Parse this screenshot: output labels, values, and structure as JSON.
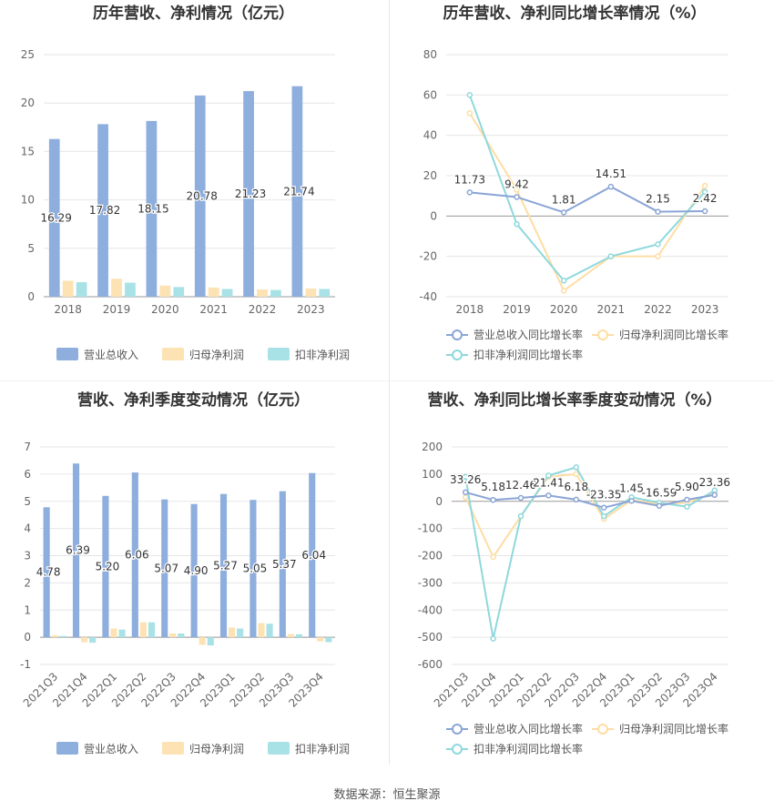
{
  "source": "数据来源：恒生聚源",
  "colors": {
    "revenue": "#8eaedd",
    "net_profit": "#fde2b3",
    "deducted_profit": "#a9e2e6",
    "revenue_growth": "#8aa5d6",
    "net_profit_growth": "#fedda4",
    "deducted_growth": "#8fd8dc",
    "grid": "#e6e6e6",
    "axis_text": "#666666"
  },
  "chart_data": [
    {
      "type": "bar",
      "title": "历年营收、净利情况（亿元）",
      "categories": [
        "2018",
        "2019",
        "2020",
        "2021",
        "2022",
        "2023"
      ],
      "series": [
        {
          "name": "营业总收入",
          "values": [
            16.29,
            17.82,
            18.15,
            20.78,
            21.23,
            21.74
          ],
          "labels": [
            "16.29",
            "17.82",
            "18.15",
            "20.78",
            "21.23",
            "21.74"
          ]
        },
        {
          "name": "归母净利润",
          "values": [
            1.65,
            1.85,
            1.15,
            0.95,
            0.75,
            0.85
          ]
        },
        {
          "name": "扣非净利润",
          "values": [
            1.5,
            1.45,
            1.0,
            0.8,
            0.7,
            0.8
          ]
        }
      ],
      "ylim": [
        0,
        25
      ],
      "yticks": [
        0,
        5,
        10,
        15,
        20,
        25
      ],
      "grid": true,
      "legend_position": "bottom"
    },
    {
      "type": "line",
      "title": "历年营收、净利同比增长率情况（%）",
      "categories": [
        "2018",
        "2019",
        "2020",
        "2021",
        "2022",
        "2023"
      ],
      "series": [
        {
          "name": "营业总收入同比增长率",
          "values": [
            11.73,
            9.42,
            1.81,
            14.51,
            2.15,
            2.42
          ],
          "labels": [
            "11.73",
            "9.42",
            "1.81",
            "14.51",
            "2.15",
            "2.42"
          ]
        },
        {
          "name": "归母净利润同比增长率",
          "values": [
            51,
            13,
            -37,
            -20,
            -20,
            15
          ]
        },
        {
          "name": "扣非净利润同比增长率",
          "values": [
            60,
            -4,
            -32,
            -20,
            -14,
            12
          ]
        }
      ],
      "ylim": [
        -40,
        80
      ],
      "yticks": [
        -40,
        -20,
        0,
        20,
        40,
        60,
        80
      ],
      "grid": true,
      "legend_position": "bottom"
    },
    {
      "type": "bar",
      "title": "营收、净利季度变动情况（亿元）",
      "categories": [
        "2021Q3",
        "2021Q4",
        "2022Q1",
        "2022Q2",
        "2022Q3",
        "2022Q4",
        "2023Q1",
        "2023Q2",
        "2023Q3",
        "2023Q4"
      ],
      "series": [
        {
          "name": "营业总收入",
          "values": [
            4.78,
            6.39,
            5.2,
            6.06,
            5.07,
            4.9,
            5.27,
            5.05,
            5.37,
            6.04
          ],
          "labels": [
            "4.78",
            "6.39",
            "5.20",
            "6.06",
            "5.07",
            "4.90",
            "5.27",
            "5.05",
            "5.37",
            "6.04"
          ]
        },
        {
          "name": "归母净利润",
          "values": [
            0.07,
            -0.18,
            0.32,
            0.55,
            0.14,
            -0.28,
            0.36,
            0.52,
            0.12,
            -0.15
          ]
        },
        {
          "name": "扣非净利润",
          "values": [
            0.05,
            -0.2,
            0.28,
            0.55,
            0.14,
            -0.3,
            0.32,
            0.5,
            0.11,
            -0.18
          ]
        }
      ],
      "ylim": [
        -1,
        7
      ],
      "yticks": [
        -1,
        0,
        1,
        2,
        3,
        4,
        5,
        6,
        7
      ],
      "grid": true,
      "legend_position": "bottom"
    },
    {
      "type": "line",
      "title": "营收、净利同比增长率季度变动情况（%）",
      "categories": [
        "2021Q3",
        "2021Q4",
        "2022Q1",
        "2022Q2",
        "2022Q3",
        "2022Q4",
        "2023Q1",
        "2023Q2",
        "2023Q3",
        "2023Q4"
      ],
      "series": [
        {
          "name": "营业总收入同比增长率",
          "values": [
            33.26,
            5.18,
            12.46,
            21.41,
            6.18,
            -23.35,
            1.45,
            -16.59,
            5.9,
            23.36
          ],
          "labels": [
            "33.26",
            "5.18",
            "12.46",
            "21.41",
            "6.18",
            "-23.35",
            "1.45",
            "-16.59",
            "5.90",
            "23.36"
          ]
        },
        {
          "name": "归母净利润同比增长率",
          "values": [
            15,
            -205,
            -55,
            90,
            100,
            -65,
            5,
            -10,
            -5,
            30
          ]
        },
        {
          "name": "扣非净利润同比增长率",
          "values": [
            90,
            -505,
            -55,
            95,
            125,
            -55,
            15,
            -5,
            -20,
            40
          ]
        }
      ],
      "ylim": [
        -600,
        200
      ],
      "yticks": [
        -600,
        -500,
        -400,
        -300,
        -200,
        -100,
        0,
        100,
        200
      ],
      "grid": true,
      "legend_position": "bottom"
    }
  ]
}
